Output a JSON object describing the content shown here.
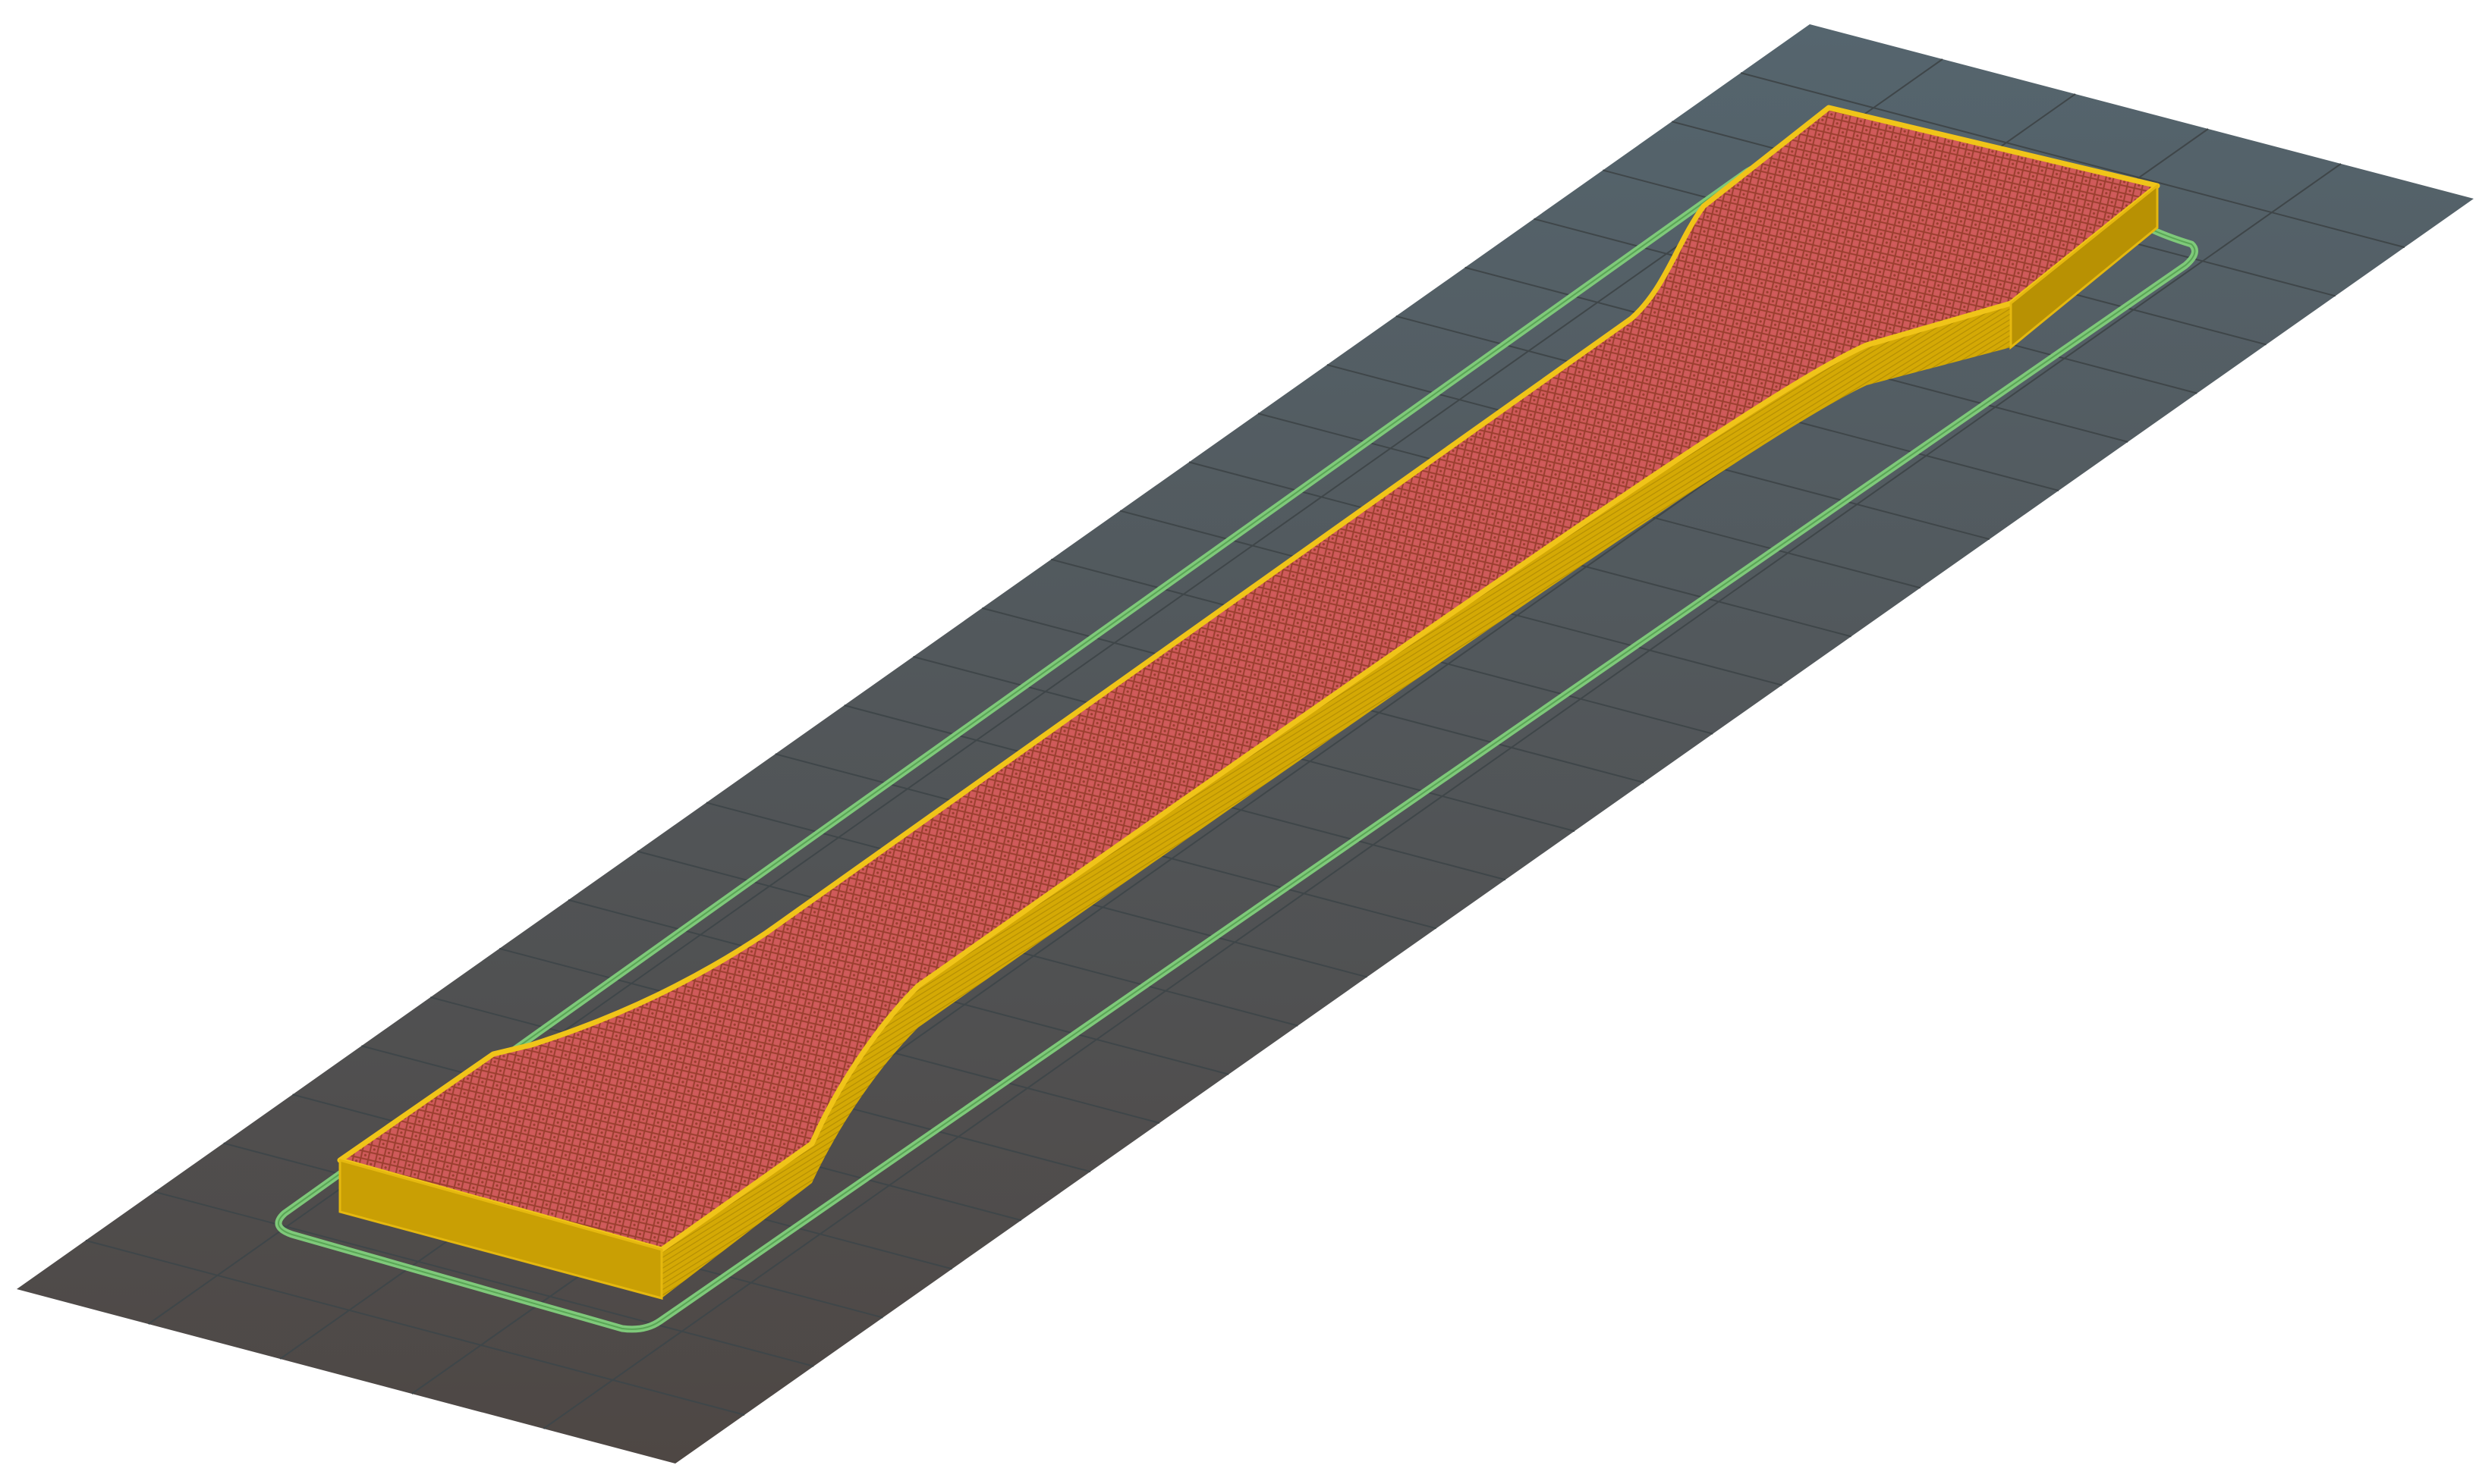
{
  "viewport": {
    "name": "slicer-3d-preview",
    "background": "#ffffff"
  },
  "build_plate": {
    "color_far": "#55656e",
    "color_near": "#4e4744",
    "grid_color": "#3f4649"
  },
  "skirt": {
    "color": "#7fc97a"
  },
  "model": {
    "shape": "dog-bone tensile test specimen",
    "wall_color": "#d4a905",
    "wall_edge_color": "#f0c419",
    "infill_color": "#cf5a5a",
    "infill_pattern_color": "#9b3f2f"
  }
}
